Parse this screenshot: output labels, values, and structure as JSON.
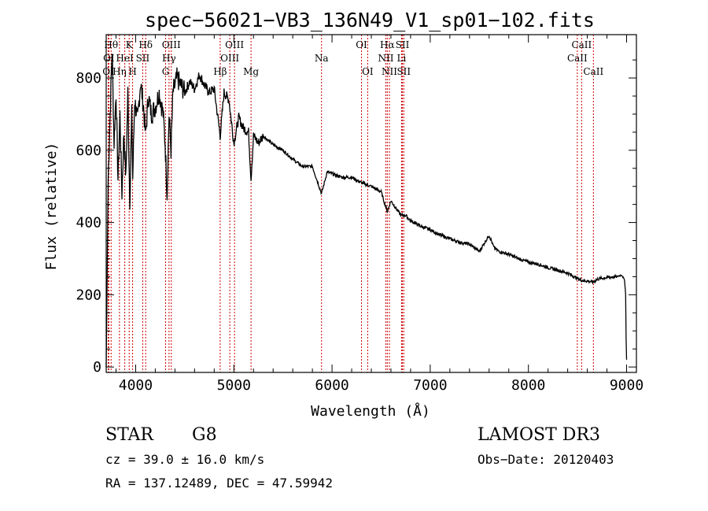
{
  "chart_data": {
    "type": "line",
    "title": "spec−56021−VB3_136N49_V1_sp01−102.fits",
    "xlabel": "Wavelength (Å)",
    "ylabel": "Flux (relative)",
    "xlim": [
      3700,
      9100
    ],
    "ylim": [
      -15,
      920
    ],
    "xticks": [
      4000,
      5000,
      6000,
      7000,
      8000,
      9000
    ],
    "yticks": [
      0,
      200,
      400,
      600,
      800
    ],
    "x": [
      3700,
      3720,
      3740,
      3760,
      3780,
      3800,
      3820,
      3840,
      3860,
      3880,
      3900,
      3920,
      3940,
      3960,
      3970,
      3990,
      4020,
      4050,
      4080,
      4101,
      4130,
      4160,
      4200,
      4240,
      4280,
      4300,
      4320,
      4340,
      4360,
      4380,
      4420,
      4460,
      4500,
      4550,
      4600,
      4650,
      4700,
      4750,
      4800,
      4861,
      4900,
      4950,
      5000,
      5050,
      5100,
      5150,
      5175,
      5200,
      5250,
      5300,
      5400,
      5500,
      5600,
      5700,
      5800,
      5893,
      5950,
      6000,
      6100,
      6200,
      6300,
      6400,
      6500,
      6563,
      6600,
      6650,
      6700,
      6750,
      6800,
      6900,
      7000,
      7100,
      7200,
      7300,
      7400,
      7500,
      7600,
      7650,
      7700,
      7800,
      7900,
      8000,
      8100,
      8200,
      8300,
      8400,
      8500,
      8542,
      8600,
      8662,
      8700,
      8800,
      8900,
      8950,
      8980,
      8990,
      8995,
      9000
    ],
    "y": [
      0,
      520,
      700,
      880,
      620,
      760,
      520,
      700,
      480,
      650,
      520,
      760,
      460,
      700,
      520,
      740,
      680,
      790,
      720,
      640,
      750,
      700,
      720,
      760,
      700,
      620,
      480,
      700,
      600,
      760,
      800,
      780,
      760,
      790,
      770,
      810,
      780,
      760,
      770,
      640,
      760,
      740,
      620,
      690,
      660,
      650,
      520,
      640,
      620,
      640,
      615,
      600,
      575,
      555,
      555,
      480,
      540,
      535,
      525,
      525,
      510,
      500,
      485,
      430,
      460,
      440,
      420,
      420,
      405,
      390,
      380,
      365,
      355,
      345,
      340,
      320,
      365,
      330,
      320,
      312,
      300,
      290,
      285,
      275,
      268,
      260,
      245,
      240,
      238,
      235,
      243,
      248,
      250,
      255,
      240,
      200,
      80,
      20
    ],
    "spectral_lines": [
      {
        "name": "OI",
        "wavelength": 3720,
        "row": 3
      },
      {
        "name": "OI",
        "wavelength": 3727,
        "row": 2
      },
      {
        "name": "Hθ",
        "wavelength": 3750,
        "row": 1
      },
      {
        "name": "Hη",
        "wavelength": 3835,
        "row": 3
      },
      {
        "name": "HeI",
        "wavelength": 3889,
        "row": 2
      },
      {
        "name": "K",
        "wavelength": 3934,
        "row": 1
      },
      {
        "name": "H",
        "wavelength": 3969,
        "row": 3
      },
      {
        "name": "SII",
        "wavelength": 4072,
        "row": 2
      },
      {
        "name": "Hδ",
        "wavelength": 4102,
        "row": 1
      },
      {
        "name": "G",
        "wavelength": 4305,
        "row": 3
      },
      {
        "name": "Hγ",
        "wavelength": 4340,
        "row": 2
      },
      {
        "name": "OIII",
        "wavelength": 4363,
        "row": 1
      },
      {
        "name": "Hβ",
        "wavelength": 4861,
        "row": 3
      },
      {
        "name": "OIII",
        "wavelength": 4959,
        "row": 2
      },
      {
        "name": "OIII",
        "wavelength": 5007,
        "row": 1
      },
      {
        "name": "Mg",
        "wavelength": 5175,
        "row": 3
      },
      {
        "name": "Na",
        "wavelength": 5893,
        "row": 2
      },
      {
        "name": "OI",
        "wavelength": 6300,
        "row": 1
      },
      {
        "name": "OI",
        "wavelength": 6363,
        "row": 3
      },
      {
        "name": "NII",
        "wavelength": 6548,
        "row": 2
      },
      {
        "name": "Hα",
        "wavelength": 6563,
        "row": 1
      },
      {
        "name": "NII",
        "wavelength": 6584,
        "row": 3
      },
      {
        "name": "Li",
        "wavelength": 6708,
        "row": 2
      },
      {
        "name": "SII",
        "wavelength": 6717,
        "row": 1
      },
      {
        "name": "SII",
        "wavelength": 6731,
        "row": 3
      },
      {
        "name": "CaII",
        "wavelength": 8498,
        "row": 2
      },
      {
        "name": "CaII",
        "wavelength": 8542,
        "row": 1
      },
      {
        "name": "CaII",
        "wavelength": 8662,
        "row": 3
      }
    ],
    "colors": {
      "line": "#000000",
      "spectral_line": "#cc0000",
      "axes": "#000000"
    }
  },
  "info": {
    "object_type": "STAR",
    "subclass": "G8",
    "survey": "LAMOST DR3",
    "cz": "cz = 39.0 ± 16.0 km/s",
    "obs_date": "Obs−Date: 20120403",
    "coords": "RA = 137.12489, DEC =  47.59942"
  }
}
